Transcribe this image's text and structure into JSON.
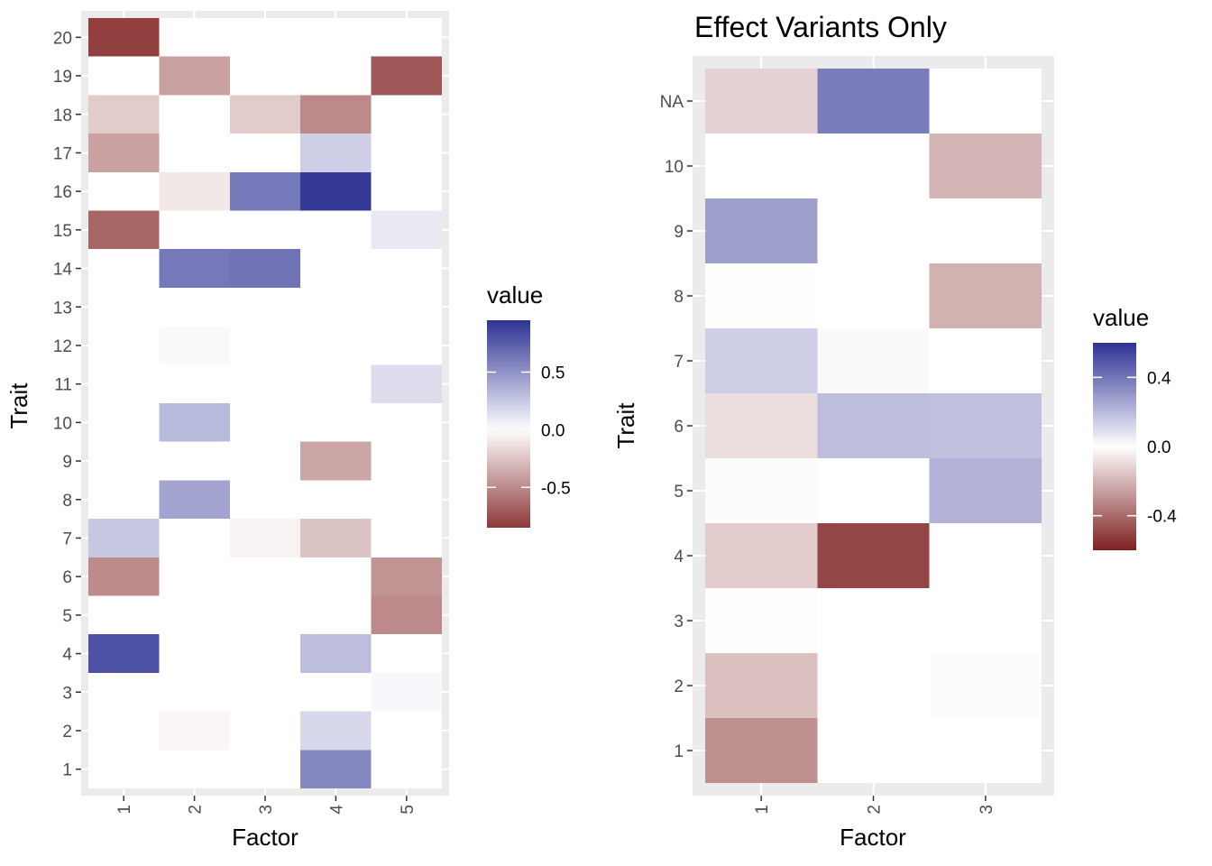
{
  "colors": {
    "low": "#7f2020",
    "mid": "#ffffff",
    "high": "#2d3193",
    "panel_background": "#ebebeb",
    "grid": "#ffffff",
    "tick_label": "#4d4d4d"
  },
  "chart_data": [
    {
      "type": "heatmap",
      "title": "",
      "xlabel": "Factor",
      "ylabel": "Trait",
      "x_categories": [
        "1",
        "2",
        "3",
        "4",
        "5"
      ],
      "y_categories": [
        "1",
        "2",
        "3",
        "4",
        "5",
        "6",
        "7",
        "8",
        "9",
        "10",
        "11",
        "12",
        "13",
        "14",
        "15",
        "16",
        "17",
        "18",
        "19",
        "20"
      ],
      "value_range": [
        -0.85,
        0.95
      ],
      "legend": {
        "title": "value",
        "ticks": [
          0.5,
          0.0,
          -0.5
        ],
        "tick_labels": [
          "0.5",
          "0.0",
          "-0.5"
        ]
      },
      "cells": [
        {
          "x": "1",
          "y": "20",
          "value": -0.82
        },
        {
          "x": "2",
          "y": "19",
          "value": -0.4
        },
        {
          "x": "5",
          "y": "19",
          "value": -0.72
        },
        {
          "x": "1",
          "y": "18",
          "value": -0.22
        },
        {
          "x": "3",
          "y": "18",
          "value": -0.22
        },
        {
          "x": "4",
          "y": "18",
          "value": -0.5
        },
        {
          "x": "1",
          "y": "17",
          "value": -0.4
        },
        {
          "x": "4",
          "y": "17",
          "value": 0.22
        },
        {
          "x": "2",
          "y": "16",
          "value": -0.1
        },
        {
          "x": "3",
          "y": "16",
          "value": 0.62
        },
        {
          "x": "4",
          "y": "16",
          "value": 0.92
        },
        {
          "x": "1",
          "y": "15",
          "value": -0.65
        },
        {
          "x": "5",
          "y": "15",
          "value": 0.1
        },
        {
          "x": "2",
          "y": "14",
          "value": 0.62
        },
        {
          "x": "3",
          "y": "14",
          "value": 0.65
        },
        {
          "x": "2",
          "y": "12",
          "value": -0.03
        },
        {
          "x": "5",
          "y": "11",
          "value": 0.16
        },
        {
          "x": "2",
          "y": "10",
          "value": 0.32
        },
        {
          "x": "4",
          "y": "9",
          "value": -0.38
        },
        {
          "x": "2",
          "y": "8",
          "value": 0.42
        },
        {
          "x": "1",
          "y": "7",
          "value": 0.26
        },
        {
          "x": "3",
          "y": "7",
          "value": -0.05
        },
        {
          "x": "4",
          "y": "7",
          "value": -0.25
        },
        {
          "x": "1",
          "y": "6",
          "value": -0.5
        },
        {
          "x": "5",
          "y": "6",
          "value": -0.45
        },
        {
          "x": "5",
          "y": "5",
          "value": -0.5
        },
        {
          "x": "1",
          "y": "4",
          "value": 0.8
        },
        {
          "x": "4",
          "y": "4",
          "value": 0.3
        },
        {
          "x": "5",
          "y": "3",
          "value": 0.03
        },
        {
          "x": "2",
          "y": "2",
          "value": -0.04
        },
        {
          "x": "4",
          "y": "2",
          "value": 0.18
        },
        {
          "x": "4",
          "y": "1",
          "value": 0.55
        }
      ]
    },
    {
      "type": "heatmap",
      "title": "Effect Variants Only",
      "xlabel": "Factor",
      "ylabel": "Trait",
      "x_categories": [
        "1",
        "2",
        "3"
      ],
      "y_categories": [
        "1",
        "2",
        "3",
        "4",
        "5",
        "6",
        "7",
        "8",
        "9",
        "10",
        "NA"
      ],
      "value_range": [
        -0.6,
        0.6
      ],
      "legend": {
        "title": "value",
        "ticks": [
          0.4,
          0.0,
          -0.4
        ],
        "tick_labels": [
          "0.4",
          "0.0",
          "-0.4"
        ]
      },
      "cells": [
        {
          "x": "1",
          "y": "NA",
          "value": -0.12
        },
        {
          "x": "2",
          "y": "NA",
          "value": 0.38
        },
        {
          "x": "3",
          "y": "10",
          "value": -0.2
        },
        {
          "x": "1",
          "y": "9",
          "value": 0.28
        },
        {
          "x": "1",
          "y": "8",
          "value": 0.003
        },
        {
          "x": "3",
          "y": "8",
          "value": -0.21
        },
        {
          "x": "1",
          "y": "7",
          "value": 0.14
        },
        {
          "x": "2",
          "y": "7",
          "value": -0.02
        },
        {
          "x": "1",
          "y": "6",
          "value": -0.09
        },
        {
          "x": "2",
          "y": "6",
          "value": 0.19
        },
        {
          "x": "3",
          "y": "6",
          "value": 0.18
        },
        {
          "x": "1",
          "y": "5",
          "value": 0.01
        },
        {
          "x": "3",
          "y": "5",
          "value": 0.22
        },
        {
          "x": "1",
          "y": "4",
          "value": -0.14
        },
        {
          "x": "2",
          "y": "4",
          "value": -0.5
        },
        {
          "x": "1",
          "y": "3",
          "value": 0.005
        },
        {
          "x": "1",
          "y": "2",
          "value": -0.17
        },
        {
          "x": "3",
          "y": "2",
          "value": 0.01
        },
        {
          "x": "1",
          "y": "1",
          "value": -0.3
        }
      ]
    }
  ]
}
